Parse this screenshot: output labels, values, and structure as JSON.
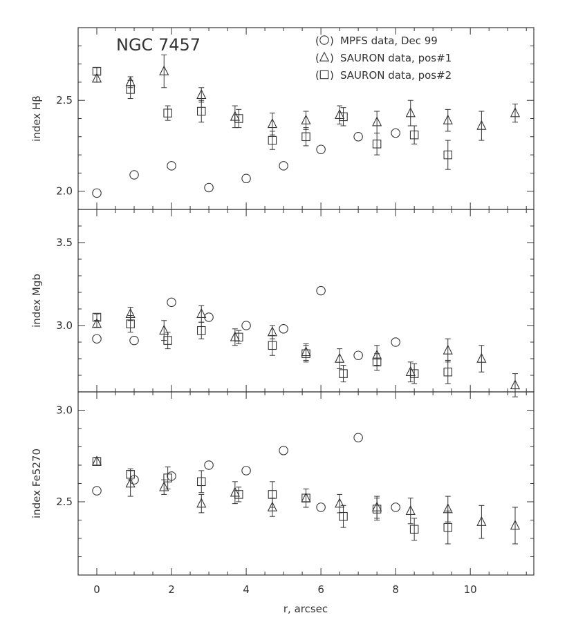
{
  "chart_data": {
    "type": "scatter",
    "title": "NGC 7457",
    "xlabel": "r, arcsec",
    "xlim": [
      -0.5,
      11.7
    ],
    "xticks": [
      0,
      2,
      4,
      6,
      8,
      10
    ],
    "xtick_labels": [
      "0",
      "2",
      "4",
      "6",
      "8",
      "10"
    ],
    "legend": {
      "placement": "top-right",
      "entries": [
        {
          "marker": "circle",
          "label": "MPFS data, Dec 99"
        },
        {
          "marker": "triangle",
          "label": "SAURON data, pos#1"
        },
        {
          "marker": "square",
          "label": "SAURON data, pos#2"
        }
      ]
    },
    "panels": [
      {
        "ylabel": "index Hβ",
        "ylim": [
          1.9,
          2.9
        ],
        "yticks": [
          2.0,
          2.5
        ],
        "ytick_labels": [
          "2.0",
          "2.5"
        ],
        "series": [
          {
            "marker": "circle",
            "points": [
              {
                "x": 0,
                "y": 1.99
              },
              {
                "x": 1,
                "y": 2.09
              },
              {
                "x": 2,
                "y": 2.14
              },
              {
                "x": 3,
                "y": 2.02
              },
              {
                "x": 4,
                "y": 2.07
              },
              {
                "x": 5,
                "y": 2.14
              },
              {
                "x": 6,
                "y": 2.23
              },
              {
                "x": 7,
                "y": 2.3
              },
              {
                "x": 8,
                "y": 2.32
              }
            ]
          },
          {
            "marker": "triangle",
            "points": [
              {
                "x": 0,
                "y": 2.62,
                "err": 0.02
              },
              {
                "x": 0.9,
                "y": 2.6,
                "err": 0.03
              },
              {
                "x": 1.8,
                "y": 2.66,
                "err": 0.09
              },
              {
                "x": 2.8,
                "y": 2.53,
                "err": 0.04
              },
              {
                "x": 3.7,
                "y": 2.41,
                "err": 0.06
              },
              {
                "x": 4.7,
                "y": 2.37,
                "err": 0.06
              },
              {
                "x": 5.6,
                "y": 2.39,
                "err": 0.05
              },
              {
                "x": 6.5,
                "y": 2.42,
                "err": 0.05
              },
              {
                "x": 7.5,
                "y": 2.38,
                "err": 0.06
              },
              {
                "x": 8.4,
                "y": 2.43,
                "err": 0.07
              },
              {
                "x": 9.4,
                "y": 2.39,
                "err": 0.06
              },
              {
                "x": 10.3,
                "y": 2.36,
                "err": 0.08
              },
              {
                "x": 11.2,
                "y": 2.43,
                "err": 0.05
              }
            ]
          },
          {
            "marker": "square",
            "points": [
              {
                "x": 0,
                "y": 2.66,
                "err": 0.02
              },
              {
                "x": 0.9,
                "y": 2.56,
                "err": 0.05
              },
              {
                "x": 1.9,
                "y": 2.43,
                "err": 0.04
              },
              {
                "x": 2.8,
                "y": 2.44,
                "err": 0.06
              },
              {
                "x": 3.8,
                "y": 2.4,
                "err": 0.05
              },
              {
                "x": 4.7,
                "y": 2.28,
                "err": 0.05
              },
              {
                "x": 5.6,
                "y": 2.3,
                "err": 0.05
              },
              {
                "x": 6.6,
                "y": 2.41,
                "err": 0.05
              },
              {
                "x": 7.5,
                "y": 2.26,
                "err": 0.06
              },
              {
                "x": 8.5,
                "y": 2.31,
                "err": 0.05
              },
              {
                "x": 9.4,
                "y": 2.2,
                "err": 0.08
              }
            ]
          }
        ]
      },
      {
        "ylabel": "index Mgb",
        "ylim": [
          2.6,
          3.7
        ],
        "yticks": [
          3.0,
          3.5
        ],
        "ytick_labels": [
          "3.0",
          "3.5"
        ],
        "series": [
          {
            "marker": "circle",
            "points": [
              {
                "x": 0,
                "y": 2.92
              },
              {
                "x": 1,
                "y": 2.91
              },
              {
                "x": 2,
                "y": 3.14
              },
              {
                "x": 3,
                "y": 3.05
              },
              {
                "x": 4,
                "y": 3.0
              },
              {
                "x": 5,
                "y": 2.98
              },
              {
                "x": 6,
                "y": 3.21
              },
              {
                "x": 7,
                "y": 2.82
              },
              {
                "x": 8,
                "y": 2.9
              }
            ]
          },
          {
            "marker": "triangle",
            "points": [
              {
                "x": 0,
                "y": 3.01,
                "err": 0.02
              },
              {
                "x": 0.9,
                "y": 3.07,
                "err": 0.04
              },
              {
                "x": 1.8,
                "y": 2.97,
                "err": 0.06
              },
              {
                "x": 2.8,
                "y": 3.07,
                "err": 0.05
              },
              {
                "x": 3.7,
                "y": 2.93,
                "err": 0.05
              },
              {
                "x": 4.7,
                "y": 2.96,
                "err": 0.04
              },
              {
                "x": 5.6,
                "y": 2.84,
                "err": 0.05
              },
              {
                "x": 6.5,
                "y": 2.8,
                "err": 0.06
              },
              {
                "x": 7.5,
                "y": 2.82,
                "err": 0.06
              },
              {
                "x": 8.4,
                "y": 2.72,
                "err": 0.06
              },
              {
                "x": 9.4,
                "y": 2.85,
                "err": 0.07
              },
              {
                "x": 10.3,
                "y": 2.8,
                "err": 0.08
              },
              {
                "x": 11.2,
                "y": 2.64,
                "err": 0.07
              }
            ]
          },
          {
            "marker": "square",
            "points": [
              {
                "x": 0,
                "y": 3.05,
                "err": 0.02
              },
              {
                "x": 0.9,
                "y": 3.01,
                "err": 0.05
              },
              {
                "x": 1.9,
                "y": 2.91,
                "err": 0.05
              },
              {
                "x": 2.8,
                "y": 2.97,
                "err": 0.05
              },
              {
                "x": 3.8,
                "y": 2.93,
                "err": 0.04
              },
              {
                "x": 4.7,
                "y": 2.88,
                "err": 0.06
              },
              {
                "x": 5.6,
                "y": 2.83,
                "err": 0.05
              },
              {
                "x": 6.6,
                "y": 2.71,
                "err": 0.05
              },
              {
                "x": 7.5,
                "y": 2.78,
                "err": 0.05
              },
              {
                "x": 8.5,
                "y": 2.71,
                "err": 0.06
              },
              {
                "x": 9.4,
                "y": 2.72,
                "err": 0.07
              }
            ]
          }
        ]
      },
      {
        "ylabel": "index Fe5270",
        "ylim": [
          2.1,
          3.1
        ],
        "yticks": [
          2.5,
          3.0
        ],
        "ytick_labels": [
          "2.5",
          "3.0"
        ],
        "series": [
          {
            "marker": "circle",
            "points": [
              {
                "x": 0,
                "y": 2.56
              },
              {
                "x": 1,
                "y": 2.62
              },
              {
                "x": 2,
                "y": 2.64
              },
              {
                "x": 3,
                "y": 2.7
              },
              {
                "x": 4,
                "y": 2.67
              },
              {
                "x": 5,
                "y": 2.78
              },
              {
                "x": 6,
                "y": 2.47
              },
              {
                "x": 7,
                "y": 2.85
              },
              {
                "x": 8,
                "y": 2.47
              }
            ]
          },
          {
            "marker": "triangle",
            "points": [
              {
                "x": 0,
                "y": 2.72,
                "err": 0.02
              },
              {
                "x": 0.9,
                "y": 2.6,
                "err": 0.07
              },
              {
                "x": 1.8,
                "y": 2.58,
                "err": 0.04
              },
              {
                "x": 2.8,
                "y": 2.49,
                "err": 0.05
              },
              {
                "x": 3.7,
                "y": 2.55,
                "err": 0.06
              },
              {
                "x": 4.7,
                "y": 2.47,
                "err": 0.05
              },
              {
                "x": 5.6,
                "y": 2.52,
                "err": 0.05
              },
              {
                "x": 6.5,
                "y": 2.49,
                "err": 0.05
              },
              {
                "x": 7.5,
                "y": 2.47,
                "err": 0.06
              },
              {
                "x": 8.4,
                "y": 2.45,
                "err": 0.07
              },
              {
                "x": 9.4,
                "y": 2.46,
                "err": 0.07
              },
              {
                "x": 10.3,
                "y": 2.39,
                "err": 0.09
              },
              {
                "x": 11.2,
                "y": 2.37,
                "err": 0.1
              }
            ]
          },
          {
            "marker": "square",
            "points": [
              {
                "x": 0,
                "y": 2.72,
                "err": 0.02
              },
              {
                "x": 0.9,
                "y": 2.65,
                "err": 0.03
              },
              {
                "x": 1.9,
                "y": 2.63,
                "err": 0.06
              },
              {
                "x": 2.8,
                "y": 2.61,
                "err": 0.06
              },
              {
                "x": 3.8,
                "y": 2.54,
                "err": 0.04
              },
              {
                "x": 4.7,
                "y": 2.54,
                "err": 0.07
              },
              {
                "x": 5.6,
                "y": 2.52,
                "err": 0.05
              },
              {
                "x": 6.6,
                "y": 2.42,
                "err": 0.06
              },
              {
                "x": 7.5,
                "y": 2.46,
                "err": 0.06
              },
              {
                "x": 8.5,
                "y": 2.35,
                "err": 0.06
              },
              {
                "x": 9.4,
                "y": 2.36,
                "err": 0.09
              }
            ]
          }
        ]
      }
    ]
  }
}
